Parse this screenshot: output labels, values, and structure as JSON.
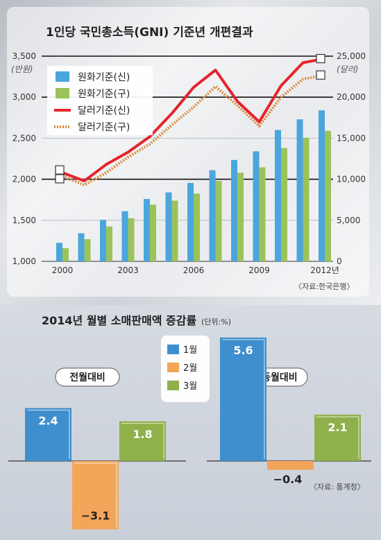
{
  "chart_data": [
    {
      "type": "bar+line",
      "title": "1인당 국민총소득(GNI) 기준년 개편결과",
      "left_unit": "(만원)",
      "right_unit": "(달러)",
      "y_left_ticks": [
        "3,500",
        "3,000",
        "2,500",
        "2,000",
        "1,500",
        "1,000"
      ],
      "y_right_ticks": [
        "25,000",
        "20,000",
        "15,000",
        "10,000",
        "5,000",
        "0"
      ],
      "ylim_left": [
        1000,
        3500
      ],
      "ylim_right": [
        0,
        25000
      ],
      "x_ticks": [
        "2000",
        "2003",
        "2006",
        "2009",
        "2012년"
      ],
      "years": [
        2000,
        2001,
        2002,
        2003,
        2004,
        2005,
        2006,
        2007,
        2008,
        2009,
        2010,
        2011,
        2012
      ],
      "legend": [
        "원화기준(신)",
        "원화기준(구)",
        "달러기준(신)",
        "달러기준(구)"
      ],
      "colors": {
        "krw_new": "#4aa6dd",
        "krw_old": "#9cc25a",
        "usd_new": "#e5242c",
        "usd_old": "#d98a3a"
      },
      "series": [
        {
          "name": "원화기준(신)",
          "axis": "left",
          "values": [
            1225,
            1342,
            1505,
            1610,
            1760,
            1840,
            1955,
            2110,
            2235,
            2340,
            2600,
            2730,
            2840
          ]
        },
        {
          "name": "원화기준(구)",
          "axis": "left",
          "values": [
            1160,
            1270,
            1425,
            1525,
            1690,
            1740,
            1825,
            1980,
            2080,
            2145,
            2380,
            2505,
            2590
          ]
        },
        {
          "name": "달러기준(신)",
          "axis": "right",
          "values": [
            10800,
            9800,
            11800,
            13300,
            15200,
            18000,
            21200,
            23300,
            19500,
            17000,
            21400,
            24200,
            24700
          ]
        },
        {
          "name": "달러기준(구)",
          "axis": "right",
          "values": [
            10400,
            9300,
            10800,
            12700,
            14300,
            16600,
            18800,
            21300,
            19000,
            16500,
            20000,
            22200,
            22700
          ]
        }
      ],
      "source": "〈자료:한국은행〉"
    },
    {
      "type": "bar",
      "title": "2014년 월별 소매판매액 증감률",
      "unit": "(단위:%)",
      "legend": [
        "1월",
        "2월",
        "3월"
      ],
      "colors": {
        "jan": "#3f8fcf",
        "feb": "#f3a55a",
        "mar": "#8fb04a"
      },
      "groups": [
        {
          "label": "전월대비",
          "values": [
            2.4,
            -3.1,
            1.8
          ],
          "value_labels": [
            "2.4",
            "−3.1",
            "1.8"
          ]
        },
        {
          "label": "전년동월대비",
          "values": [
            5.6,
            -0.4,
            2.1
          ],
          "value_labels": [
            "5.6",
            "−0.4",
            "2.1"
          ]
        }
      ],
      "source": "〈자료: 통계청〉"
    }
  ]
}
